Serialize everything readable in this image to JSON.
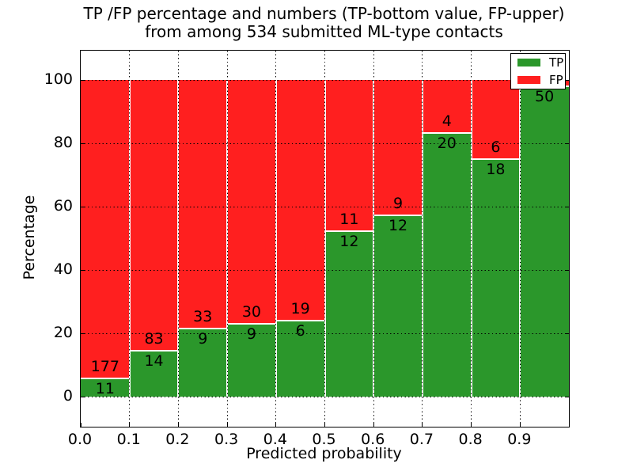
{
  "title": {
    "line1": "TP /FP percentage and numbers (TP-bottom value, FP-upper)",
    "line2": "from among 534 submitted ML-type contacts"
  },
  "axes": {
    "xlabel": "Predicted probability",
    "ylabel": "Percentage",
    "y_ticks": [
      "0",
      "20",
      "40",
      "60",
      "80",
      "100"
    ],
    "x_ticks": [
      "0.0",
      "0.1",
      "0.2",
      "0.3",
      "0.4",
      "0.5",
      "0.6",
      "0.7",
      "0.8",
      "0.9"
    ],
    "xlim": [
      0.0,
      1.0
    ],
    "ylim": [
      -9.5,
      109.5
    ],
    "grid": "dotted black, horizontal every 20%, vertical every 0.1, drawn over bars"
  },
  "legend": {
    "position": "upper right",
    "items": [
      {
        "label": "TP",
        "color": "#2b972b"
      },
      {
        "label": "FP",
        "color": "#ff1f1f"
      }
    ]
  },
  "colors": {
    "tp": "#2b972b",
    "fp": "#ff1f1f",
    "bar_edge": "#ffffff",
    "grid": "#000000",
    "text": "#000000",
    "background": "#ffffff"
  },
  "chart_data": {
    "type": "bar",
    "stacked": true,
    "normalized_to_percent": true,
    "title": "TP /FP percentage and numbers (TP-bottom value, FP-upper) from among 534 submitted ML-type contacts",
    "xlabel": "Predicted probability",
    "ylabel": "Percentage",
    "total_contacts": 534,
    "bin_edges": [
      0.0,
      0.1,
      0.2,
      0.3,
      0.4,
      0.5,
      0.6,
      0.7,
      0.8,
      0.9,
      1.0
    ],
    "series": [
      {
        "name": "TP",
        "counts": [
          11,
          14,
          9,
          9,
          6,
          12,
          12,
          20,
          18,
          50
        ]
      },
      {
        "name": "FP",
        "counts": [
          177,
          83,
          33,
          30,
          19,
          11,
          9,
          4,
          6,
          1
        ]
      }
    ],
    "tp_percent_of_bin": [
      5.85,
      14.43,
      21.43,
      23.08,
      24.0,
      52.17,
      57.14,
      83.33,
      75.0,
      98.04
    ],
    "bar_count_labels": {
      "tp": [
        "11",
        "14",
        "9",
        "9",
        "6",
        "12",
        "12",
        "20",
        "18",
        "50"
      ],
      "fp": [
        "177",
        "83",
        "33",
        "30",
        "19",
        "11",
        "9",
        "4",
        "6",
        ""
      ]
    }
  }
}
